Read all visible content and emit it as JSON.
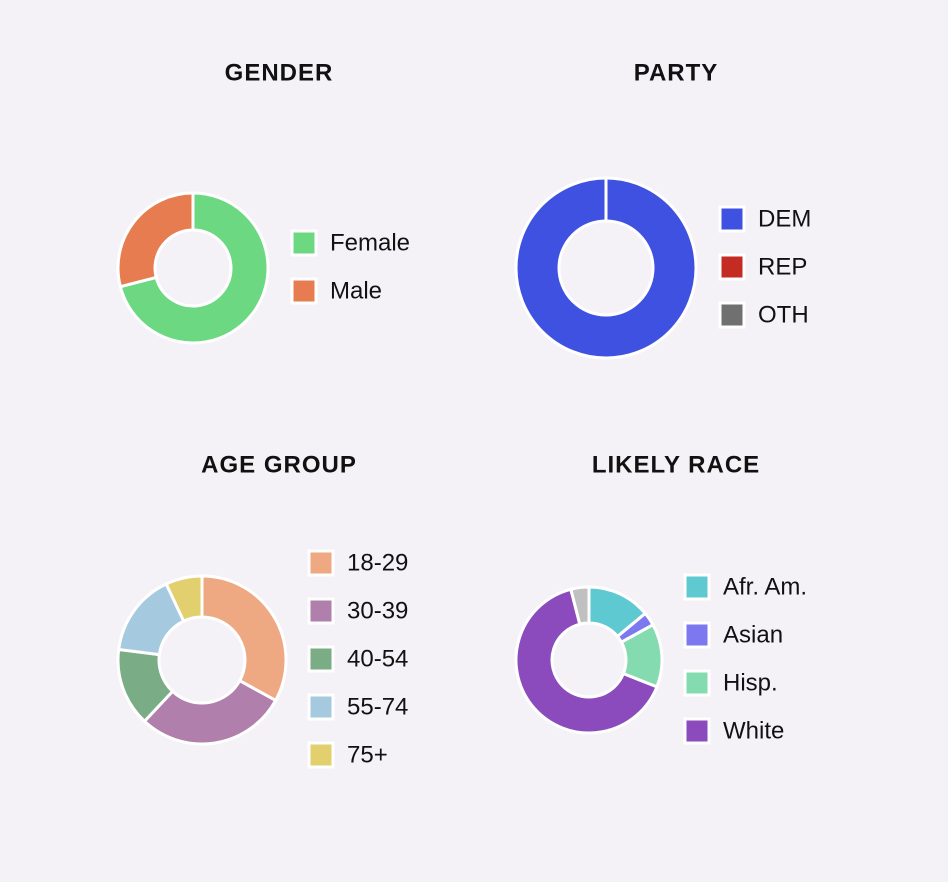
{
  "chart_data": [
    {
      "type": "pie",
      "title": "GENDER",
      "categories": [
        "Female",
        "Male"
      ],
      "values": [
        71,
        29
      ],
      "colors": [
        "#6cd882",
        "#e67c50"
      ]
    },
    {
      "type": "pie",
      "title": "PARTY",
      "categories": [
        "DEM",
        "REP",
        "OTH"
      ],
      "values": [
        100,
        0,
        0
      ],
      "colors": [
        "#3f51e0",
        "#c42b22",
        "#707070"
      ]
    },
    {
      "type": "pie",
      "title": "AGE GROUP",
      "categories": [
        "18-29",
        "30-39",
        "40-54",
        "55-74",
        "75+"
      ],
      "values": [
        33,
        29,
        15,
        16,
        7
      ],
      "colors": [
        "#eea882",
        "#b07fab",
        "#7aad86",
        "#a5c9de",
        "#e2cf6e"
      ]
    },
    {
      "type": "pie",
      "title": "LIKELY RACE",
      "categories": [
        "Afr. Am.",
        "Asian",
        "Hisp.",
        "White",
        null
      ],
      "values": [
        14,
        3,
        14,
        65,
        4
      ],
      "colors": [
        "#5fc9d1",
        "#7b78f0",
        "#84dbb0",
        "#8c4bbd",
        "#c0c0c0"
      ]
    }
  ]
}
